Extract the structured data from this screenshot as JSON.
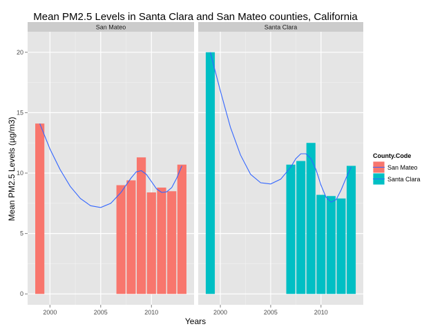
{
  "chart_data": {
    "type": "bar",
    "title": "Mean PM2.5 Levels in Santa Clara and San Mateo counties, California",
    "xlabel": "Years",
    "ylabel": "Mean PM2.5 Levels (µg/m3)",
    "xlim": [
      1997.8,
      2014.2
    ],
    "ylim": [
      -0.9,
      21.7
    ],
    "xticks": [
      2000,
      2005,
      2010
    ],
    "yticks": [
      0,
      5,
      10,
      15,
      20
    ],
    "grid": true,
    "legend": {
      "title": "County.Code",
      "placement": "right",
      "entries": [
        "San Mateo",
        "Santa Clara"
      ]
    },
    "series": [
      {
        "name": "San Mateo",
        "color": "#F8766D",
        "x": [
          1999,
          2007,
          2008,
          2009,
          2010,
          2011,
          2012,
          2013
        ],
        "values": [
          14.1,
          9.0,
          9.4,
          11.3,
          8.4,
          8.8,
          8.5,
          10.7
        ],
        "smooth": [
          [
            1999,
            14.1
          ],
          [
            2000,
            12.0
          ],
          [
            2001,
            10.3
          ],
          [
            2002,
            8.9
          ],
          [
            2003,
            7.9
          ],
          [
            2004,
            7.3
          ],
          [
            2005,
            7.15
          ],
          [
            2006,
            7.5
          ],
          [
            2007,
            8.4
          ],
          [
            2008,
            9.6
          ],
          [
            2008.5,
            10.1
          ],
          [
            2009,
            10.2
          ],
          [
            2009.5,
            9.9
          ],
          [
            2010,
            9.3
          ],
          [
            2010.5,
            8.7
          ],
          [
            2011,
            8.4
          ],
          [
            2011.5,
            8.45
          ],
          [
            2012,
            8.8
          ],
          [
            2012.5,
            9.6
          ],
          [
            2013,
            10.6
          ]
        ]
      },
      {
        "name": "Santa Clara",
        "color": "#00BFC4",
        "x": [
          1999,
          2007,
          2008,
          2009,
          2010,
          2011,
          2012,
          2013
        ],
        "values": [
          20.0,
          10.7,
          11.0,
          12.5,
          8.2,
          8.1,
          7.9,
          10.6
        ],
        "smooth": [
          [
            1999,
            20.0
          ],
          [
            2000,
            16.8
          ],
          [
            2001,
            13.8
          ],
          [
            2002,
            11.5
          ],
          [
            2003,
            9.9
          ],
          [
            2004,
            9.2
          ],
          [
            2005,
            9.1
          ],
          [
            2006,
            9.5
          ],
          [
            2007,
            10.5
          ],
          [
            2007.5,
            11.2
          ],
          [
            2008,
            11.6
          ],
          [
            2008.5,
            11.6
          ],
          [
            2009,
            11.2
          ],
          [
            2009.5,
            10.3
          ],
          [
            2010,
            9.0
          ],
          [
            2010.5,
            8.0
          ],
          [
            2011,
            7.6
          ],
          [
            2011.5,
            7.8
          ],
          [
            2012,
            8.6
          ],
          [
            2012.5,
            9.6
          ],
          [
            2013,
            10.5
          ]
        ]
      }
    ],
    "smooth_color": "#3366FF",
    "panels": [
      {
        "label": "San Mateo",
        "series": 0
      },
      {
        "label": "Santa Clara",
        "series": 1
      }
    ]
  }
}
